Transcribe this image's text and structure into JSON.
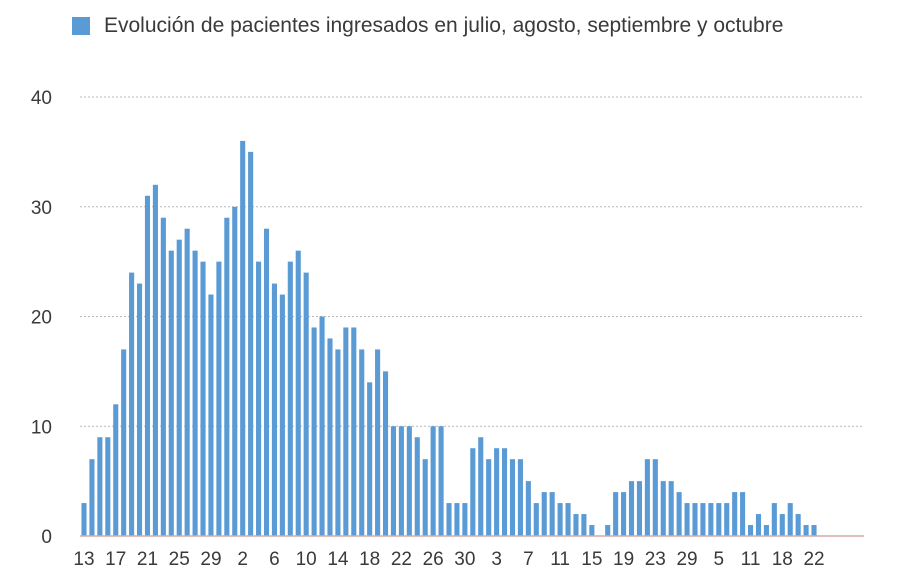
{
  "colors": {
    "bar": "#5b9bd5",
    "grid": "#b8b8b8",
    "axis": "#d4a9a9",
    "text": "#3a3a3a"
  },
  "chart_data": {
    "type": "bar",
    "legend": "Evolución de pacientes ingresados en julio, agosto, septiembre y octubre",
    "legend_position": "top-left",
    "ylim": [
      0,
      40
    ],
    "yticks": [
      0,
      10,
      20,
      30,
      40
    ],
    "grid": true,
    "x_tick_labels": [
      "13",
      "17",
      "21",
      "25",
      "29",
      "2",
      "6",
      "10",
      "14",
      "18",
      "22",
      "26",
      "30",
      "3",
      "7",
      "11",
      "15",
      "19",
      "23",
      "29",
      "5",
      "11",
      "18",
      "22"
    ],
    "x_tick_positions": [
      0,
      4,
      8,
      12,
      16,
      20,
      24,
      28,
      32,
      36,
      40,
      44,
      48,
      52,
      56,
      60,
      64,
      68,
      72,
      76,
      80,
      84,
      88,
      92
    ],
    "values": [
      3,
      7,
      9,
      9,
      12,
      17,
      24,
      23,
      31,
      32,
      29,
      26,
      27,
      28,
      26,
      25,
      22,
      25,
      29,
      30,
      36,
      35,
      25,
      28,
      23,
      22,
      25,
      26,
      24,
      19,
      20,
      18,
      17,
      19,
      19,
      17,
      14,
      17,
      15,
      10,
      10,
      10,
      9,
      7,
      10,
      10,
      3,
      3,
      3,
      8,
      9,
      7,
      8,
      8,
      7,
      7,
      5,
      3,
      4,
      4,
      3,
      3,
      2,
      2,
      1,
      0,
      1,
      4,
      4,
      5,
      5,
      7,
      7,
      5,
      5,
      4,
      3,
      3,
      3,
      3,
      3,
      3,
      4,
      4,
      1,
      2,
      1,
      3,
      2,
      3,
      2,
      1,
      1
    ]
  }
}
